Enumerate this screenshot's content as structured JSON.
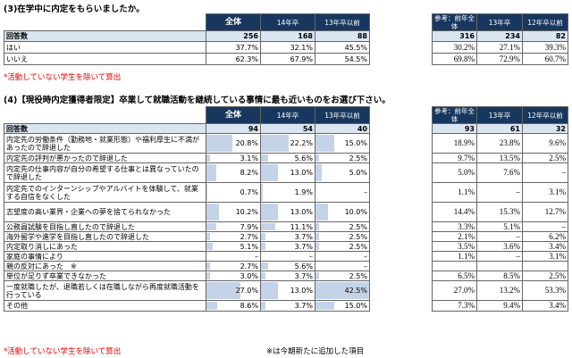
{
  "section1": {
    "title": "(3)在学中に内定をもらいましたか。",
    "headers": [
      "全体",
      "14年卒",
      "13年卒以前"
    ],
    "ref_headers": [
      "参考：前年全体",
      "13年卒",
      "12年卒以前"
    ],
    "count_label": "回答数",
    "counts": [
      "256",
      "168",
      "88"
    ],
    "ref_counts": [
      "316",
      "234",
      "82"
    ],
    "rows": [
      {
        "label": "はい",
        "values": [
          "37.7%",
          "32.1%",
          "45.5%"
        ],
        "ref": [
          "30.2%",
          "27.1%",
          "39.3%"
        ]
      },
      {
        "label": "いいえ",
        "values": [
          "62.3%",
          "67.9%",
          "54.5%"
        ],
        "ref": [
          "69.8%",
          "72.9%",
          "60.7%"
        ]
      }
    ],
    "note": "*活動していない学生を除いて算出"
  },
  "section2": {
    "title": "(4)【現役時内定獲得者限定】卒業して就職活動を継続している事情に最も近いものをお選び下さい。",
    "headers": [
      "全体",
      "14年卒",
      "13年卒以前"
    ],
    "ref_headers": [
      "参考：前年全体",
      "13年卒",
      "12年卒以前"
    ],
    "count_label": "回答数",
    "counts": [
      "94",
      "54",
      "40"
    ],
    "ref_counts": [
      "93",
      "61",
      "32"
    ],
    "rows": [
      {
        "label": "内定先の労働条件（勤務地・就業形態）や福利厚生に不満があったので辞退した",
        "values": [
          "20.8%",
          "22.2%",
          "15.0%"
        ],
        "ref": [
          "18.9%",
          "23.8%",
          "9.6%"
        ],
        "fill": [
          0.49,
          0.52,
          0.35
        ]
      },
      {
        "label": "内定先の評判が悪かったので辞退した",
        "values": [
          "3.1%",
          "5.6%",
          "2.5%"
        ],
        "ref": [
          "9.7%",
          "13.5%",
          "2.5%"
        ],
        "fill": [
          0.07,
          0.13,
          0.06
        ]
      },
      {
        "label": "内定先の仕事内容が自分の希望する仕事とは異なっていたので辞退した",
        "values": [
          "8.2%",
          "13.0%",
          "5.0%"
        ],
        "ref": [
          "5.0%",
          "7.6%",
          "–"
        ],
        "fill": [
          0.19,
          0.31,
          0.12
        ]
      },
      {
        "label": "内定先でのインターンシップやアルバイトを体験して、就業する自信をなくした",
        "values": [
          "0.7%",
          "1.9%",
          "–"
        ],
        "ref": [
          "1.1%",
          "–",
          "3.1%"
        ],
        "fill": [
          0.02,
          0.04,
          0
        ]
      },
      {
        "label": "志望度の高い業界・企業への夢を捨てられなかった",
        "values": [
          "10.2%",
          "13.0%",
          "10.0%"
        ],
        "ref": [
          "14.4%",
          "15.3%",
          "12.7%"
        ],
        "fill": [
          0.24,
          0.31,
          0.24
        ]
      },
      {
        "label": "公務員試験を目指し直したので辞退した",
        "values": [
          "7.9%",
          "11.1%",
          "2.5%"
        ],
        "ref": [
          "3.3%",
          "5.1%",
          "–"
        ],
        "fill": [
          0.19,
          0.26,
          0.06
        ]
      },
      {
        "label": "海外留学や進学を目指し直したので辞退した",
        "values": [
          "2.7%",
          "3.7%",
          "2.5%"
        ],
        "ref": [
          "2.1%",
          "–",
          "6.2%"
        ],
        "fill": [
          0.06,
          0.09,
          0.06
        ]
      },
      {
        "label": "内定取り消しにあった",
        "values": [
          "5.1%",
          "3.7%",
          "2.5%"
        ],
        "ref": [
          "3.5%",
          "3.6%",
          "3.4%"
        ],
        "fill": [
          0.12,
          0.09,
          0.06
        ]
      },
      {
        "label": "家庭の事情により",
        "values": [
          "–",
          "–",
          "–"
        ],
        "ref": [
          "1.1%",
          "–",
          "3.1%"
        ],
        "fill": [
          0,
          0,
          0
        ]
      },
      {
        "label": "親の反対にあった　※",
        "values": [
          "2.7%",
          "5.6%",
          "–"
        ],
        "ref": [
          "",
          "",
          ""
        ],
        "fill": [
          0.06,
          0.13,
          0
        ]
      },
      {
        "label": "単位が足りず卒業できなかった",
        "values": [
          "3.0%",
          "3.7%",
          "2.5%"
        ],
        "ref": [
          "6.5%",
          "8.5%",
          "2.5%"
        ],
        "fill": [
          0.07,
          0.09,
          0.06
        ]
      },
      {
        "label": "一度就職したが、退職若しくは在職しながら再度就職活動を行っている",
        "values": [
          "27.0%",
          "13.0%",
          "42.5%"
        ],
        "ref": [
          "27.0%",
          "13.2%",
          "53.3%"
        ],
        "fill": [
          0.64,
          0.31,
          1.0
        ]
      },
      {
        "label": "その他",
        "values": [
          "8.6%",
          "3.7%",
          "15.0%"
        ],
        "ref": [
          "7.3%",
          "9.4%",
          "3.4%"
        ],
        "fill": [
          0.2,
          0.09,
          0.35
        ]
      }
    ],
    "note": "*活動していない学生を除いて算出",
    "note2": "※は今期新たに追加した項目"
  }
}
